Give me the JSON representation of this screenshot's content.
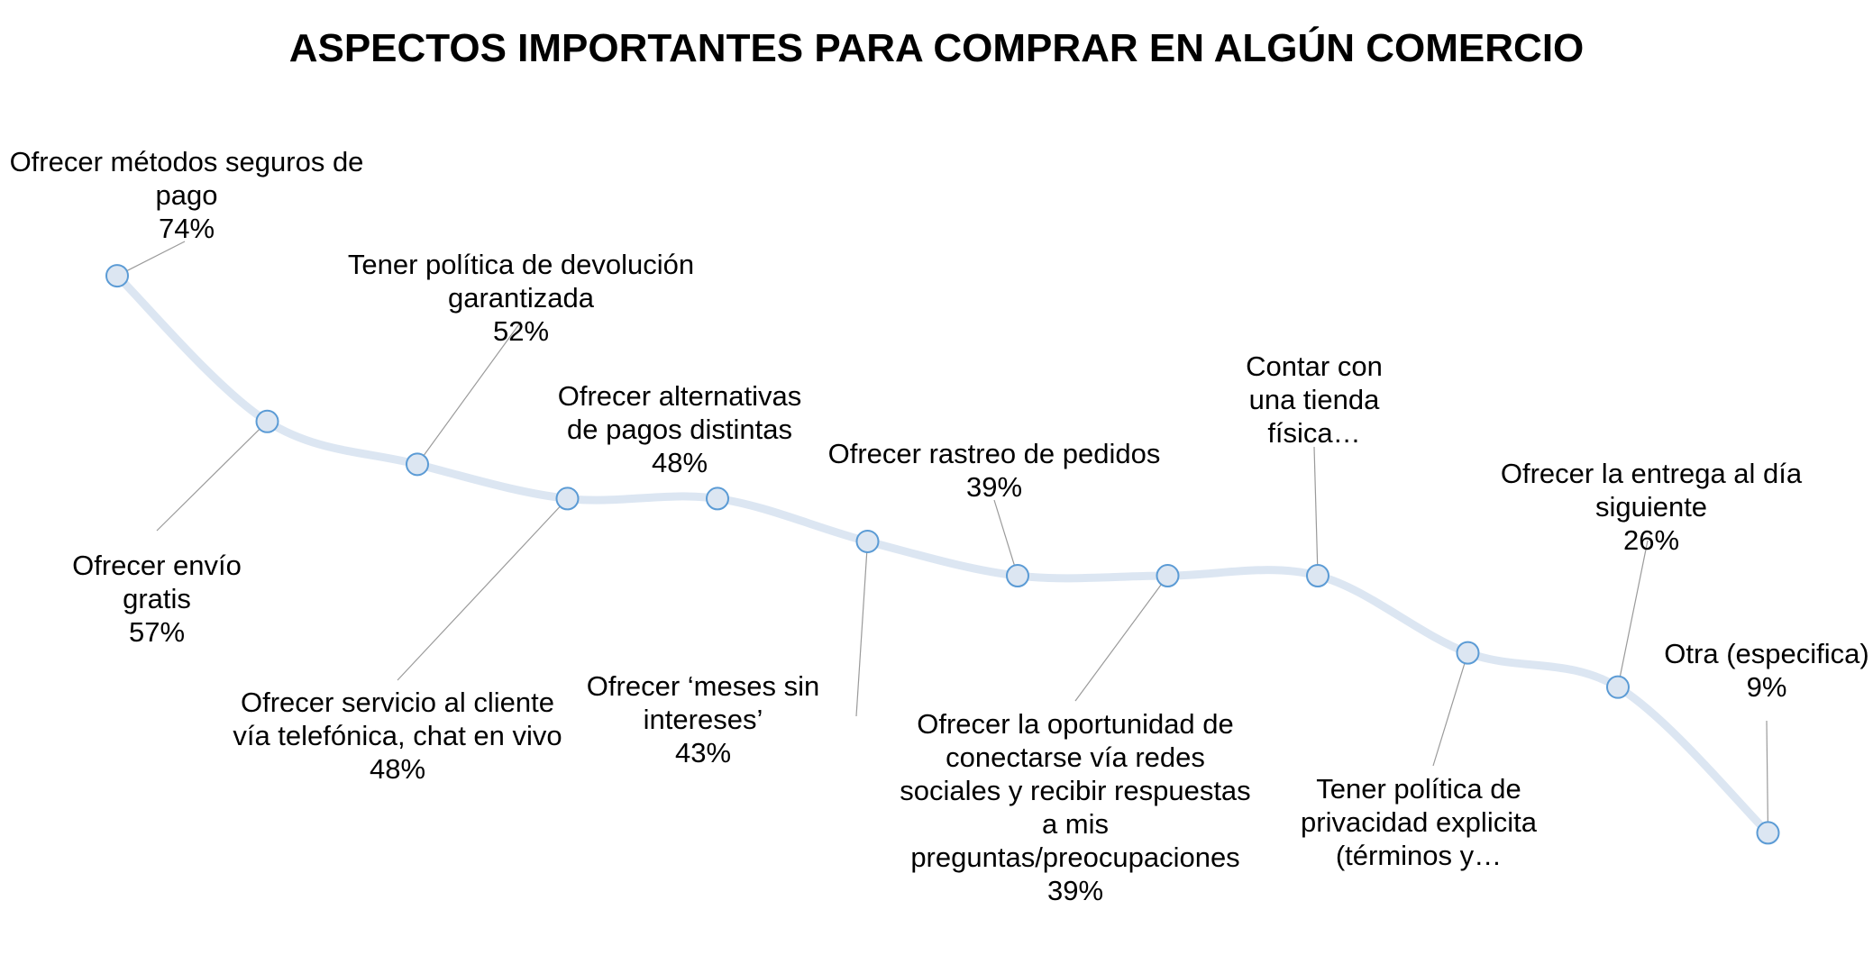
{
  "chart_data": {
    "type": "line",
    "title": "ASPECTOS IMPORTANTES PARA COMPRAR EN ALGÚN COMERCIO",
    "xlabel": "",
    "ylabel": "",
    "ylim": [
      0,
      80
    ],
    "grid": false,
    "legend": "none",
    "categories": [
      "Ofrecer métodos seguros de pago",
      "Ofrecer envío gratis",
      "Tener política de devolución garantizada",
      "Ofrecer servicio al cliente vía telefónica, chat en vivo",
      "Ofrecer alternativas de pagos distintas",
      "Ofrecer ‘meses sin intereses’",
      "Ofrecer rastreo de pedidos",
      "Ofrecer la oportunidad de conectarse vía redes sociales y recibir respuestas a mis preguntas/preocupaciones",
      "Contar con una tienda física…",
      "Tener política de privacidad explicita (términos y…",
      "Ofrecer la entrega al día siguiente",
      "Otra (especifica)"
    ],
    "series": [
      {
        "values": [
          74,
          57,
          52,
          48,
          48,
          43,
          39,
          39,
          39,
          30,
          26,
          9
        ]
      }
    ],
    "data_labels": [
      {
        "lines": [
          "Ofrecer métodos seguros de",
          "pago",
          "74%"
        ]
      },
      {
        "lines": [
          "Ofrecer envío",
          "gratis",
          "57%"
        ]
      },
      {
        "lines": [
          "Tener política de devolución",
          "garantizada",
          "52%"
        ]
      },
      {
        "lines": [
          "Ofrecer servicio al cliente",
          "vía telefónica, chat en vivo",
          "48%"
        ]
      },
      {
        "lines": [
          "Ofrecer alternativas",
          "de pagos distintas",
          "48%"
        ]
      },
      {
        "lines": [
          "Ofrecer ‘meses sin",
          "intereses’",
          "43%"
        ]
      },
      {
        "lines": [
          "Ofrecer rastreo de pedidos",
          "39%"
        ]
      },
      {
        "lines": [
          "Ofrecer la oportunidad de",
          "conectarse vía redes",
          "sociales y recibir respuestas",
          "a mis",
          "preguntas/preocupaciones",
          "39%"
        ]
      },
      {
        "lines": [
          "Contar con",
          "una tienda",
          "física…"
        ]
      },
      {
        "lines": [
          "Tener política de",
          "privacidad explicita",
          "(términos y…"
        ]
      },
      {
        "lines": [
          "Ofrecer la entrega al día",
          "siguiente",
          "26%"
        ]
      },
      {
        "lines": [
          "Otra (especifica)",
          "9%"
        ]
      }
    ],
    "colors": {
      "line": "#dce6f2",
      "marker_fill": "#dce6f2",
      "marker_stroke": "#5b9bd5",
      "leader": "#9a9a9a"
    }
  }
}
